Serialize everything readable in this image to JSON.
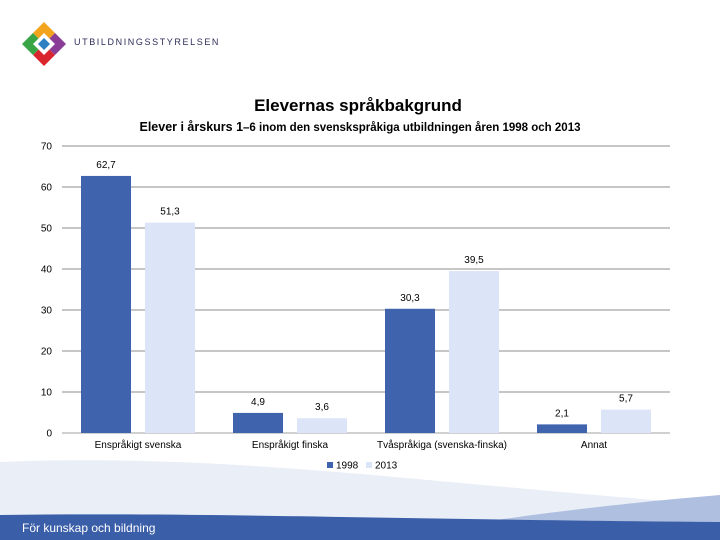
{
  "brand": {
    "name": "UTBILDNINGSSTYRELSEN",
    "footer": "För kunskap och bildning"
  },
  "colors": {
    "series1998": "#3f64ad",
    "series2013": "#dbe5f7",
    "grid": "#8c8c8c",
    "wave_light": "#e9eef7",
    "wave_mid": "#aebfe0",
    "wave_dark": "#3a5ea8"
  },
  "chart_data": {
    "type": "bar",
    "title": "Elevernas språkbakgrund",
    "subtitle_main": "Elever i årskurs 1",
    "subtitle_rest": "–6 inom den svenskspråkiga utbildningen åren 1998 och 2013",
    "categories": [
      "Enspråkigt svenska",
      "Enspråkigt finska",
      "Tvåspråkiga (svenska-finska)",
      "Annat"
    ],
    "series": [
      {
        "name": "1998",
        "values": [
          62.7,
          4.9,
          30.3,
          2.1
        ],
        "labels": [
          "62,7",
          "4,9",
          "30,3",
          "2,1"
        ]
      },
      {
        "name": "2013",
        "values": [
          51.3,
          3.6,
          39.5,
          5.7
        ],
        "labels": [
          "51,3",
          "3,6",
          "39,5",
          "5,7"
        ]
      }
    ],
    "ylim": [
      0,
      70
    ],
    "yticks": [
      0,
      10,
      20,
      30,
      40,
      50,
      60,
      70
    ],
    "grid": true,
    "legend": "bottom"
  }
}
